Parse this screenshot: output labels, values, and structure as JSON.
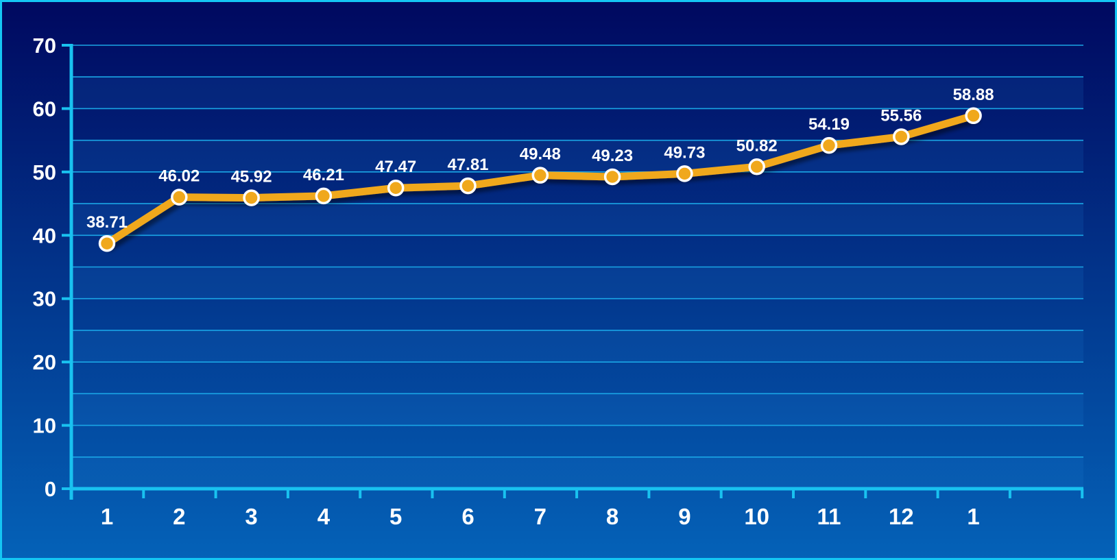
{
  "colors": {
    "background_top": "#00085f",
    "background_bottom": "#0462b8",
    "frame": "#14c6f4",
    "axis": "#19c2f0",
    "gridline": "#1aa6e6",
    "line": "#f0a81c",
    "marker_fill": "#f0a81c",
    "marker_stroke": "#ffffff",
    "text": "#ffffff"
  },
  "chart_data": {
    "type": "line",
    "title": "",
    "xlabel": "",
    "ylabel": "",
    "categories": [
      "1",
      "2",
      "3",
      "4",
      "5",
      "6",
      "7",
      "8",
      "9",
      "10",
      "11",
      "12",
      "1"
    ],
    "series": [
      {
        "values": [
          38.71,
          46.02,
          45.92,
          46.21,
          47.47,
          47.81,
          49.48,
          49.23,
          49.73,
          50.82,
          54.19,
          55.56,
          58.88
        ],
        "labels": [
          "38.71",
          "46.02",
          "45.92",
          "46.21",
          "47.47",
          "47.81",
          "49.48",
          "49.23",
          "49.73",
          "50.82",
          "54.19",
          "55.56",
          "58.88"
        ]
      }
    ],
    "ylim": [
      0,
      70
    ],
    "yticks": [
      0,
      10,
      20,
      30,
      40,
      50,
      60,
      70
    ],
    "ytick_labels": [
      "0",
      "10",
      "20",
      "30",
      "40",
      "50",
      "60",
      "70"
    ],
    "grid": true,
    "legend": "none",
    "markers": "circle"
  }
}
